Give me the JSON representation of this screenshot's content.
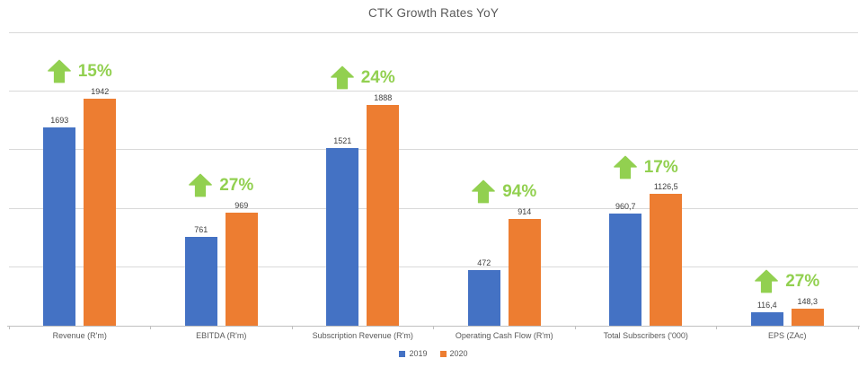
{
  "title": "CTK Growth Rates YoY",
  "chart_data": {
    "type": "bar",
    "title": "CTK Growth Rates YoY",
    "categories": [
      "Revenue (R'm)",
      "EBITDA (R'm)",
      "Subscription Revenue (R'm)",
      "Operating Cash Flow (R'm)",
      "Total Subscribers ('000)",
      "EPS (ZAc)"
    ],
    "series": [
      {
        "name": "2019",
        "color": "#4472c4",
        "values": [
          1693,
          761,
          1521,
          472,
          960.7,
          116.4
        ],
        "labels": [
          "1693",
          "761",
          "1521",
          "472",
          "960,7",
          "116,4"
        ]
      },
      {
        "name": "2020",
        "color": "#ed7d31",
        "values": [
          1942,
          969,
          1888,
          914,
          1126.5,
          148.3
        ],
        "labels": [
          "1942",
          "969",
          "1888",
          "914",
          "1126,5",
          "148,3"
        ]
      }
    ],
    "growth_annotations": [
      "15%",
      "27%",
      "24%",
      "94%",
      "17%",
      "27%"
    ],
    "growth_color": "#92d050",
    "growth_arrow_icon": "up-arrow",
    "ylim": [
      0,
      2500
    ],
    "grid_step": 500,
    "grid_on": true,
    "legend_position": "bottom-center",
    "xlabel": "",
    "ylabel": "",
    "y_axis_labels_visible": false
  },
  "colors": {
    "gridline": "#d9d9d9",
    "axis_line": "#c0c0c0",
    "title_text": "#595959",
    "category_text": "#595959",
    "value_text": "#404040"
  }
}
